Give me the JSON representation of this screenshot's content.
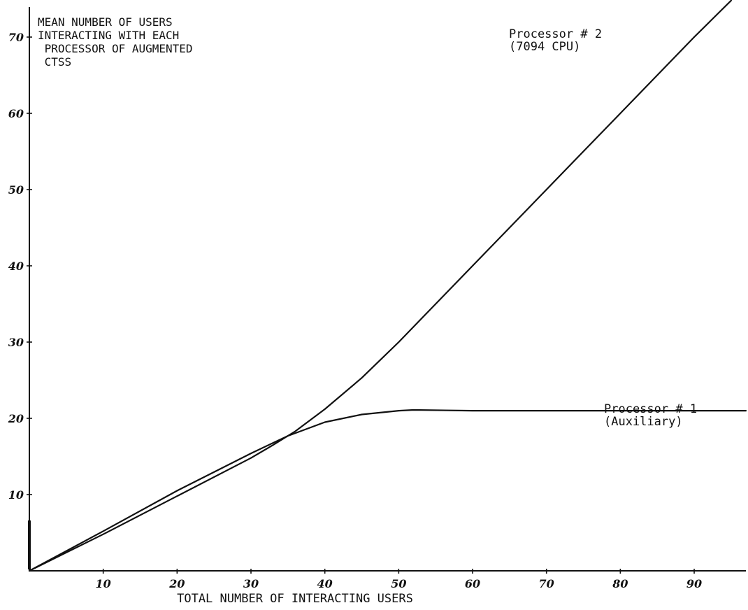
{
  "chart_data": {
    "type": "line",
    "title": [
      "MEAN NUMBER OF USERS",
      "INTERACTING WITH EACH",
      " PROCESSOR OF AUGMENTED",
      " CTSS"
    ],
    "xlabel": "TOTAL NUMBER OF INTERACTING USERS",
    "ylabel": "",
    "xlim": [
      0,
      97
    ],
    "ylim": [
      0,
      75
    ],
    "x_ticks": [
      10,
      20,
      30,
      40,
      50,
      60,
      70,
      80,
      90
    ],
    "x_tick_labels": [
      "10",
      "20",
      "30",
      "40",
      "50",
      "60",
      "70",
      "80",
      "90"
    ],
    "y_ticks": [
      10,
      20,
      30,
      40,
      50,
      60,
      70
    ],
    "y_tick_labels": [
      "10",
      "20",
      "30",
      "40",
      "50",
      "60",
      "70"
    ],
    "grid": false,
    "series": [
      {
        "name": "Processor # 2",
        "label_lines": [
          "Processor # 2",
          "(7094 CPU)"
        ],
        "x": [
          0,
          10,
          20,
          30,
          33,
          36,
          40,
          45,
          50,
          55,
          60,
          65,
          70,
          75,
          80,
          85,
          90,
          95
        ],
        "y": [
          0,
          4.8,
          9.8,
          14.8,
          16.5,
          18.3,
          21.2,
          25.3,
          30,
          35,
          40,
          45,
          50,
          55,
          60,
          65,
          70,
          74.8
        ]
      },
      {
        "name": "Processor # 1",
        "label_lines": [
          "Processor # 1",
          "(Auxiliary)"
        ],
        "x": [
          0,
          10,
          20,
          30,
          35,
          40,
          45,
          50,
          52,
          60,
          70,
          80,
          90,
          97
        ],
        "y": [
          0,
          5.2,
          10.5,
          15.4,
          17.7,
          19.5,
          20.5,
          21,
          21.1,
          21,
          21,
          21,
          21,
          21
        ]
      }
    ]
  }
}
